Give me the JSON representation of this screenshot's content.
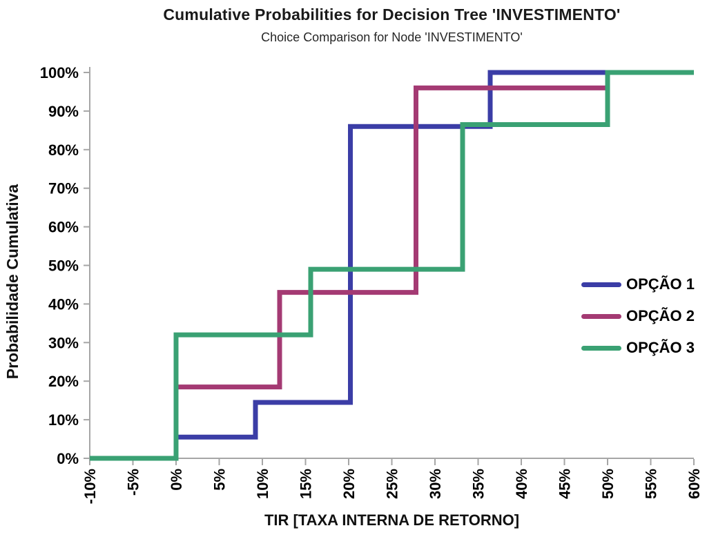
{
  "chart_data": {
    "type": "line",
    "line_style": "step-post cumulative distribution (CDF)",
    "title": "Cumulative Probabilities for Decision Tree 'INVESTIMENTO'",
    "subtitle": "Choice Comparison for Node 'INVESTIMENTO'",
    "xlabel": "TIR [TAXA INTERNA DE RETORNO]",
    "ylabel": "Probabilidade Cumulativa",
    "xlim": [
      -10,
      60
    ],
    "ylim": [
      0,
      100
    ],
    "x_unit": "%",
    "y_unit": "%",
    "grid": false,
    "legend_position": "middle-right",
    "baseline_note": "all series start at cumulative 0% at TIR -10% and end at 100% through TIR 60%",
    "x_tick_values": [
      -10,
      -5,
      0,
      5,
      10,
      15,
      20,
      25,
      30,
      35,
      40,
      45,
      50,
      55,
      60
    ],
    "x_tick_labels": [
      "-10%",
      "-5%",
      "0%",
      "5%",
      "10%",
      "15%",
      "20%",
      "25%",
      "30%",
      "35%",
      "40%",
      "45%",
      "50%",
      "55%",
      "60%"
    ],
    "y_tick_values": [
      0,
      10,
      20,
      30,
      40,
      50,
      60,
      70,
      80,
      90,
      100
    ],
    "y_tick_labels": [
      "0%",
      "10%",
      "20%",
      "30%",
      "40%",
      "50%",
      "60%",
      "70%",
      "80%",
      "90%",
      "100%"
    ],
    "axis_color": "#A6A6A6",
    "series": [
      {
        "name": "OPÇÃO 1",
        "color": "#3B3DA6",
        "steps": [
          {
            "tir": 0.0,
            "cum": 5.5
          },
          {
            "tir": 9.2,
            "cum": 14.5
          },
          {
            "tir": 20.2,
            "cum": 86.0
          },
          {
            "tir": 36.4,
            "cum": 100.0
          }
        ]
      },
      {
        "name": "OPÇÃO 2",
        "color": "#A43A73",
        "steps": [
          {
            "tir": 0.0,
            "cum": 18.5
          },
          {
            "tir": 12.0,
            "cum": 43.0
          },
          {
            "tir": 27.8,
            "cum": 96.0
          },
          {
            "tir": 50.0,
            "cum": 100.0
          }
        ]
      },
      {
        "name": "OPÇÃO 3",
        "color": "#3AA173",
        "steps": [
          {
            "tir": 0.0,
            "cum": 32.0
          },
          {
            "tir": 15.6,
            "cum": 49.0
          },
          {
            "tir": 33.2,
            "cum": 86.5
          },
          {
            "tir": 50.0,
            "cum": 100.0
          }
        ]
      }
    ]
  }
}
